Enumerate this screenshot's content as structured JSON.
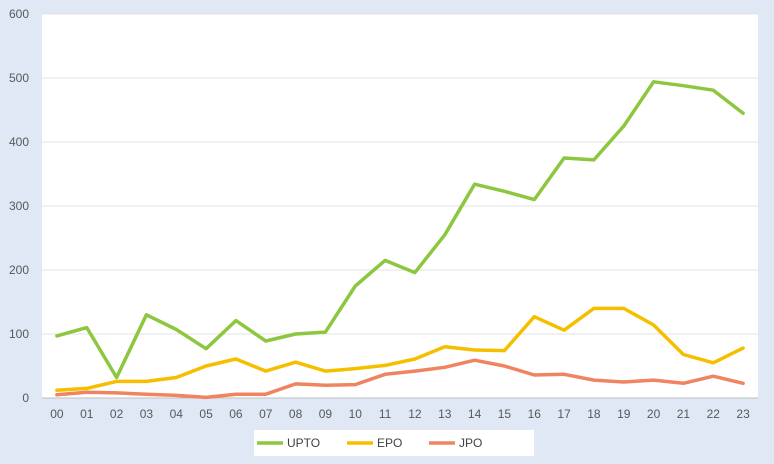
{
  "chart_data": {
    "type": "line",
    "title": "",
    "xlabel": "",
    "ylabel": "",
    "ylim": [
      0,
      600
    ],
    "yticks": [
      0,
      100,
      200,
      300,
      400,
      500,
      600
    ],
    "grid": true,
    "legend_position": "bottom",
    "categories": [
      "00",
      "01",
      "02",
      "03",
      "04",
      "05",
      "06",
      "07",
      "08",
      "09",
      "10",
      "11",
      "12",
      "13",
      "14",
      "15",
      "16",
      "17",
      "18",
      "19",
      "20",
      "21",
      "22",
      "23"
    ],
    "series": [
      {
        "name": "UPTO",
        "color": "#8dc63f",
        "values": [
          97,
          110,
          32,
          130,
          107,
          77,
          121,
          89,
          100,
          103,
          175,
          215,
          196,
          255,
          334,
          323,
          310,
          375,
          372,
          425,
          494,
          488,
          481,
          445
        ]
      },
      {
        "name": "EPO",
        "color": "#f5bf00",
        "values": [
          12,
          15,
          26,
          26,
          32,
          50,
          61,
          42,
          56,
          42,
          46,
          51,
          61,
          80,
          75,
          74,
          127,
          106,
          140,
          140,
          114,
          68,
          55,
          78
        ]
      },
      {
        "name": "JPO",
        "color": "#f08461",
        "values": [
          5,
          9,
          8,
          6,
          4,
          1,
          6,
          6,
          22,
          20,
          21,
          37,
          42,
          48,
          59,
          50,
          36,
          37,
          28,
          25,
          28,
          23,
          34,
          23
        ]
      }
    ]
  }
}
